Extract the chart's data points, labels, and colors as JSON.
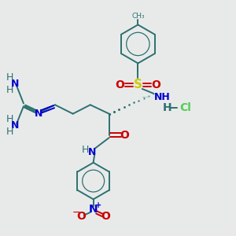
{
  "background_color": "#e8eaea",
  "bond_color": "#2d7070",
  "nitrogen_color": "#0000cc",
  "oxygen_color": "#cc0000",
  "sulfur_color": "#cccc00",
  "chlorine_color": "#55cc55",
  "hydrogen_color": "#2d7070",
  "figsize": [
    3.0,
    3.0
  ],
  "dpi": 100,
  "xlim": [
    0,
    10
  ],
  "ylim": [
    0,
    10
  ]
}
